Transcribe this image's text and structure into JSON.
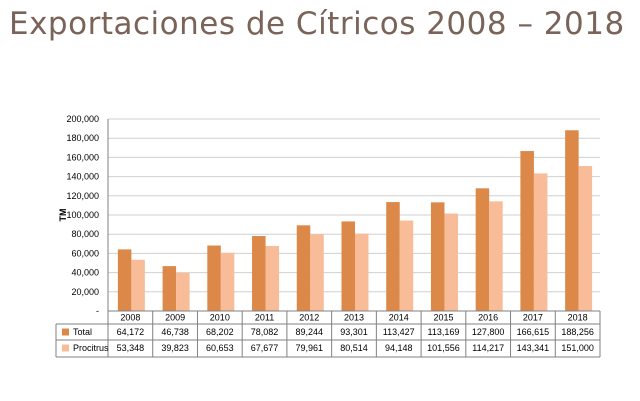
{
  "title": "Exportaciones de Cítricos 2008 – 2018",
  "colors": {
    "title": "#7a6358",
    "total": "#dc8848",
    "procitrus": "#f8bc98",
    "grid": "#d0d0d0",
    "axis": "#808080"
  },
  "chart_data": {
    "type": "bar",
    "title": "",
    "xlabel": "",
    "ylabel": "TM",
    "ylim": [
      0,
      200000
    ],
    "ytick_values": [
      0,
      20000,
      40000,
      60000,
      80000,
      100000,
      120000,
      140000,
      160000,
      180000,
      200000
    ],
    "ytick_labels": [
      "-",
      "20,000",
      "40,000",
      "60,000",
      "80,000",
      "100,000",
      "120,000",
      "140,000",
      "160,000",
      "180,000",
      "200,000"
    ],
    "grid": true,
    "legend": "data-table",
    "categories": [
      "2008",
      "2009",
      "2010",
      "2011",
      "2012",
      "2013",
      "2014",
      "2015",
      "2016",
      "2017",
      "2018"
    ],
    "series": [
      {
        "name": "Total",
        "color": "#dc8848",
        "values": [
          64172,
          46738,
          68202,
          78082,
          89244,
          93301,
          113427,
          113169,
          127800,
          166615,
          188256
        ],
        "labels": [
          "64,172",
          "46,738",
          "68,202",
          "78,082",
          "89,244",
          "93,301",
          "113,427",
          "113,169",
          "127,800",
          "166,615",
          "188,256"
        ]
      },
      {
        "name": "Procitrus",
        "color": "#f8bc98",
        "values": [
          53348,
          39823,
          60653,
          67677,
          79961,
          80514,
          94148,
          101556,
          114217,
          143341,
          151000
        ],
        "labels": [
          "53,348",
          "39,823",
          "60,653",
          "67,677",
          "79,961",
          "80,514",
          "94,148",
          "101,556",
          "114,217",
          "143,341",
          "151,000"
        ]
      }
    ]
  }
}
